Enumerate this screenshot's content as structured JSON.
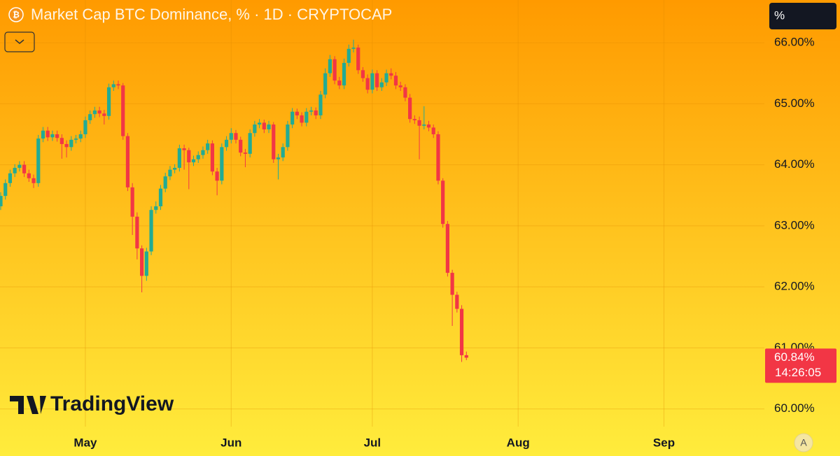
{
  "chart_data": {
    "type": "candlestick",
    "title": "Market Cap BTC Dominance, % · 1D · CRYPTOCAP",
    "categories": [
      null,
      null,
      null,
      null,
      null,
      null,
      null,
      null,
      null,
      null,
      null,
      null,
      null,
      null,
      null,
      null,
      null,
      null,
      "May",
      null,
      null,
      null,
      null,
      null,
      null,
      null,
      null,
      null,
      null,
      null,
      null,
      null,
      null,
      null,
      null,
      null,
      null,
      null,
      null,
      null,
      null,
      null,
      null,
      null,
      null,
      null,
      null,
      null,
      null,
      "Jun",
      null,
      null,
      null,
      null,
      null,
      null,
      null,
      null,
      null,
      null,
      null,
      null,
      null,
      null,
      null,
      null,
      null,
      null,
      null,
      null,
      null,
      null,
      null,
      null,
      null,
      null,
      null,
      null,
      null,
      "Jul",
      null,
      null,
      null,
      null,
      null,
      null,
      null,
      null,
      null,
      null,
      null,
      null,
      null,
      null,
      null,
      null,
      null,
      null,
      null,
      null,
      null,
      null,
      null,
      null,
      null,
      null,
      null,
      null,
      null,
      null,
      "Aug",
      null,
      null,
      null,
      null,
      null,
      null,
      null,
      null,
      null,
      null,
      null,
      null,
      null,
      null,
      null,
      null,
      null,
      null,
      null,
      null,
      null,
      null,
      null,
      null,
      null,
      null,
      null,
      null,
      null,
      null,
      "Sep",
      null,
      null,
      null,
      null,
      null,
      null,
      null,
      null,
      null,
      null,
      null,
      null,
      null,
      null,
      null,
      null,
      null,
      null,
      null,
      null,
      null
    ],
    "open": [
      63.32,
      63.49,
      63.7,
      63.86,
      63.95,
      64.0,
      63.86,
      63.78,
      63.7,
      64.43,
      64.56,
      64.45,
      64.5,
      64.44,
      64.34,
      64.29,
      64.41,
      64.43,
      64.5,
      64.73,
      64.83,
      64.89,
      64.84,
      64.8,
      65.27,
      65.32,
      65.3,
      64.47,
      63.63,
      63.15,
      62.63,
      62.18,
      62.58,
      63.26,
      63.32,
      63.61,
      63.81,
      63.92,
      63.95,
      64.27,
      64.24,
      64.04,
      64.09,
      64.16,
      64.24,
      64.35,
      63.89,
      63.74,
      64.29,
      64.41,
      64.52,
      64.41,
      64.2,
      64.18,
      64.52,
      64.66,
      64.69,
      64.58,
      64.66,
      64.09,
      64.12,
      64.29,
      64.66,
      64.87,
      64.81,
      64.69,
      64.87,
      64.89,
      64.81,
      65.15,
      65.5,
      65.73,
      65.38,
      65.3,
      65.67,
      65.9,
      65.92,
      65.55,
      65.42,
      65.23,
      65.5,
      65.27,
      65.35,
      65.5,
      65.46,
      65.3,
      65.27,
      65.1,
      64.75,
      64.73,
      64.64,
      64.66,
      64.61,
      64.5,
      63.74,
      63.03,
      62.23,
      61.87,
      61.64,
      60.88,
      null,
      null,
      null,
      null,
      null,
      null,
      null,
      null,
      null,
      null,
      null,
      null,
      null,
      null,
      null,
      null,
      null,
      null,
      null,
      null,
      null,
      null,
      null,
      null,
      null,
      null,
      null,
      null,
      null,
      null,
      null,
      null,
      null,
      null,
      null,
      null,
      null,
      null,
      null,
      null,
      null,
      null,
      null,
      null,
      null,
      null,
      null,
      null,
      null,
      null,
      null,
      null,
      null,
      null,
      null,
      null,
      null,
      null,
      null,
      null,
      null,
      null,
      null
    ],
    "high": [
      63.55,
      63.76,
      63.92,
      64.01,
      64.06,
      64.06,
      63.92,
      63.84,
      64.49,
      64.62,
      64.62,
      64.56,
      64.56,
      64.5,
      64.4,
      64.47,
      64.49,
      64.56,
      64.79,
      64.89,
      64.95,
      64.95,
      64.9,
      65.33,
      65.38,
      65.38,
      65.34,
      64.52,
      63.7,
      63.22,
      62.68,
      62.64,
      63.32,
      63.4,
      63.67,
      63.87,
      63.98,
      64.01,
      64.33,
      64.33,
      64.28,
      64.15,
      64.22,
      64.3,
      64.41,
      64.4,
      63.95,
      64.35,
      64.47,
      64.6,
      64.57,
      64.46,
      64.26,
      64.58,
      64.72,
      64.75,
      64.74,
      64.72,
      64.7,
      64.18,
      64.35,
      64.72,
      64.93,
      64.92,
      64.86,
      64.93,
      64.95,
      64.94,
      65.21,
      65.58,
      65.8,
      65.78,
      65.44,
      65.74,
      65.97,
      66.05,
      65.97,
      65.6,
      65.48,
      65.56,
      65.55,
      65.42,
      65.56,
      65.58,
      65.52,
      65.36,
      65.32,
      65.16,
      64.81,
      64.79,
      64.96,
      64.72,
      64.66,
      64.55,
      63.78,
      63.08,
      62.28,
      61.92,
      61.7,
      60.94,
      null,
      null,
      null,
      null,
      null,
      null,
      null,
      null,
      null,
      null,
      null,
      null,
      null,
      null,
      null,
      null,
      null,
      null,
      null,
      null,
      null,
      null,
      null,
      null,
      null,
      null,
      null,
      null,
      null,
      null,
      null,
      null,
      null,
      null,
      null,
      null,
      null,
      null,
      null,
      null,
      null,
      null,
      null,
      null,
      null,
      null,
      null,
      null,
      null,
      null,
      null,
      null,
      null,
      null,
      null,
      null,
      null,
      null,
      null,
      null,
      null,
      null,
      null
    ],
    "low": [
      63.26,
      63.43,
      63.64,
      63.8,
      63.89,
      63.8,
      63.72,
      63.62,
      63.64,
      64.37,
      64.39,
      64.39,
      64.38,
      64.1,
      64.12,
      64.23,
      64.35,
      64.37,
      64.44,
      64.67,
      64.77,
      64.78,
      64.66,
      64.74,
      65.21,
      65.24,
      64.41,
      63.57,
      62.85,
      62.45,
      61.91,
      62.1,
      62.52,
      63.2,
      63.26,
      63.55,
      63.75,
      63.86,
      63.89,
      63.92,
      63.6,
      63.98,
      64.03,
      64.1,
      64.18,
      63.83,
      63.5,
      63.68,
      64.23,
      64.35,
      64.35,
      64.14,
      63.96,
      64.12,
      64.46,
      64.6,
      64.52,
      64.52,
      64.03,
      63.76,
      64.06,
      64.23,
      64.6,
      64.75,
      64.63,
      64.63,
      64.81,
      64.75,
      64.75,
      65.09,
      65.44,
      65.32,
      65.24,
      65.24,
      65.61,
      65.84,
      65.49,
      65.36,
      65.17,
      65.17,
      65.21,
      65.21,
      65.29,
      65.4,
      65.24,
      65.21,
      65.04,
      64.69,
      64.67,
      64.09,
      64.58,
      64.55,
      64.44,
      63.68,
      62.97,
      62.17,
      61.36,
      61.58,
      60.77,
      60.8,
      null,
      null,
      null,
      null,
      null,
      null,
      null,
      null,
      null,
      null,
      null,
      null,
      null,
      null,
      null,
      null,
      null,
      null,
      null,
      null,
      null,
      null,
      null,
      null,
      null,
      null,
      null,
      null,
      null,
      null,
      null,
      null,
      null,
      null,
      null,
      null,
      null,
      null,
      null,
      null,
      null,
      null,
      null,
      null,
      null,
      null,
      null,
      null,
      null,
      null,
      null,
      null,
      null,
      null,
      null,
      null,
      null,
      null,
      null,
      null,
      null,
      null,
      null
    ],
    "close": [
      63.49,
      63.7,
      63.86,
      63.95,
      64.0,
      63.86,
      63.78,
      63.7,
      64.43,
      64.56,
      64.45,
      64.5,
      64.44,
      64.34,
      64.29,
      64.41,
      64.43,
      64.5,
      64.73,
      64.83,
      64.89,
      64.84,
      64.8,
      65.27,
      65.32,
      65.3,
      64.47,
      63.63,
      63.15,
      62.63,
      62.18,
      62.58,
      63.26,
      63.32,
      63.61,
      63.81,
      63.92,
      63.95,
      64.27,
      64.24,
      64.04,
      64.09,
      64.16,
      64.24,
      64.35,
      63.89,
      63.74,
      64.29,
      64.41,
      64.52,
      64.41,
      64.2,
      64.18,
      64.52,
      64.66,
      64.69,
      64.58,
      64.66,
      64.09,
      64.12,
      64.29,
      64.66,
      64.87,
      64.81,
      64.69,
      64.87,
      64.89,
      64.81,
      65.15,
      65.5,
      65.73,
      65.38,
      65.3,
      65.67,
      65.9,
      65.92,
      65.55,
      65.42,
      65.23,
      65.5,
      65.27,
      65.35,
      65.5,
      65.46,
      65.3,
      65.27,
      65.1,
      64.75,
      64.73,
      64.64,
      64.66,
      64.61,
      64.5,
      63.74,
      63.03,
      62.23,
      61.87,
      61.64,
      60.88,
      60.84,
      null,
      null,
      null,
      null,
      null,
      null,
      null,
      null,
      null,
      null,
      null,
      null,
      null,
      null,
      null,
      null,
      null,
      null,
      null,
      null,
      null,
      null,
      null,
      null,
      null,
      null,
      null,
      null,
      null,
      null,
      null,
      null,
      null,
      null,
      null,
      null,
      null,
      null,
      null,
      null,
      null,
      null,
      null,
      null,
      null,
      null,
      null,
      null,
      null,
      null,
      null,
      null,
      null,
      null,
      null,
      null,
      null,
      null,
      null,
      null,
      null,
      null,
      null
    ],
    "up_color": "#22ab94",
    "down_color": "#f23645",
    "ylim": [
      59.71,
      66.7
    ],
    "yticks": [
      {
        "value": 60,
        "label": "60.00%"
      },
      {
        "value": 61,
        "label": "61.00%"
      },
      {
        "value": 62,
        "label": "62.00%"
      },
      {
        "value": 63,
        "label": "63.00%"
      },
      {
        "value": 64,
        "label": "64.00%"
      },
      {
        "value": 65,
        "label": "65.00%"
      },
      {
        "value": 66,
        "label": "66.00%"
      }
    ],
    "grid": true,
    "last_label": "60.84%",
    "countdown": "14:26:05"
  },
  "ui": {
    "scale_button": "%",
    "logo": "TradingView",
    "auto_button": "A"
  }
}
